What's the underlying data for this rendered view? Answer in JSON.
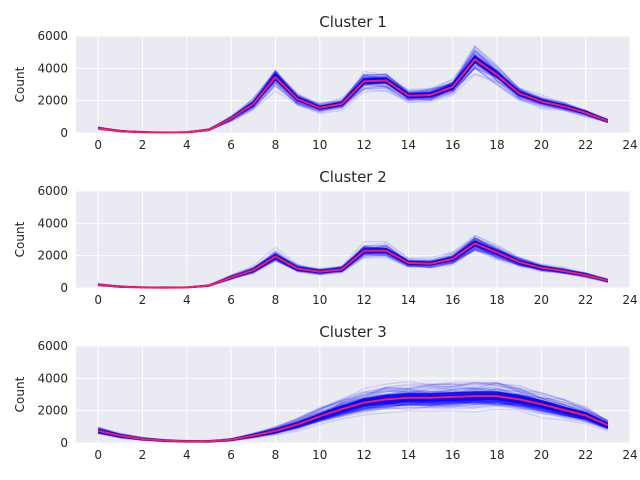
{
  "chart_data": [
    {
      "type": "line",
      "title": "Cluster 1",
      "xlabel": "",
      "ylabel": "Count",
      "xlim": [
        -1,
        24
      ],
      "ylim": [
        0,
        6000
      ],
      "xticks": [
        0,
        2,
        4,
        6,
        8,
        10,
        12,
        14,
        16,
        18,
        20,
        22,
        24
      ],
      "yticks": [
        0,
        2000,
        4000,
        6000
      ],
      "grid": true,
      "legend": "none",
      "member_color": "#0000ff",
      "mean_color": "#ff1a4d",
      "x": [
        0,
        1,
        2,
        3,
        4,
        5,
        6,
        7,
        8,
        9,
        10,
        11,
        12,
        13,
        14,
        15,
        16,
        17,
        18,
        19,
        20,
        21,
        22,
        23
      ],
      "series": [
        {
          "values": [
            300,
            120,
            50,
            30,
            40,
            200,
            900,
            1800,
            3450,
            2100,
            1550,
            1800,
            3200,
            3250,
            2300,
            2350,
            2850,
            4550,
            3600,
            2450,
            1950,
            1650,
            1250,
            750
          ]
        }
      ]
    },
    {
      "type": "line",
      "title": "Cluster 2",
      "xlabel": "",
      "ylabel": "Count",
      "xlim": [
        -1,
        24
      ],
      "ylim": [
        0,
        6000
      ],
      "xticks": [
        0,
        2,
        4,
        6,
        8,
        10,
        12,
        14,
        16,
        18,
        20,
        22,
        24
      ],
      "yticks": [
        0,
        2000,
        4000,
        6000
      ],
      "grid": true,
      "legend": "none",
      "member_color": "#0000ff",
      "mean_color": "#ff1a4d",
      "x": [
        0,
        1,
        2,
        3,
        4,
        5,
        6,
        7,
        8,
        9,
        10,
        11,
        12,
        13,
        14,
        15,
        16,
        17,
        18,
        19,
        20,
        21,
        22,
        23
      ],
      "series": [
        {
          "values": [
            200,
            80,
            30,
            20,
            30,
            150,
            650,
            1100,
            1950,
            1200,
            1000,
            1150,
            2300,
            2300,
            1550,
            1500,
            1800,
            2750,
            2200,
            1600,
            1250,
            1050,
            800,
            450
          ]
        }
      ]
    },
    {
      "type": "line",
      "title": "Cluster 3",
      "xlabel": "",
      "ylabel": "Count",
      "xlim": [
        -1,
        24
      ],
      "ylim": [
        0,
        6000
      ],
      "xticks": [
        0,
        2,
        4,
        6,
        8,
        10,
        12,
        14,
        16,
        18,
        20,
        22,
        24
      ],
      "yticks": [
        0,
        2000,
        4000,
        6000
      ],
      "grid": true,
      "legend": "none",
      "member_color": "#0000ff",
      "mean_color": "#ff1a4d",
      "x": [
        0,
        1,
        2,
        3,
        4,
        5,
        6,
        7,
        8,
        9,
        10,
        11,
        12,
        13,
        14,
        15,
        16,
        17,
        18,
        19,
        20,
        21,
        22,
        23
      ],
      "series": [
        {
          "values": [
            750,
            450,
            250,
            150,
            100,
            100,
            200,
            450,
            750,
            1150,
            1650,
            2100,
            2500,
            2700,
            2800,
            2800,
            2850,
            2900,
            2900,
            2700,
            2400,
            2050,
            1700,
            1100
          ]
        }
      ]
    }
  ]
}
